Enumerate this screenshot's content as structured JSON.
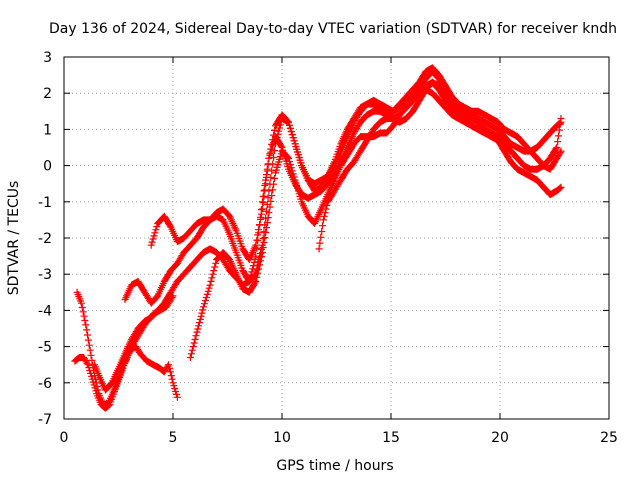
{
  "chart_data": {
    "type": "scatter",
    "title": "Day 136 of 2024, Sidereal Day-to-day VTEC variation (SDTVAR) for receiver kndh",
    "xlabel": "GPS time / hours",
    "ylabel": "SDTVAR / TECUs",
    "xlim": [
      0,
      25
    ],
    "ylim": [
      -7,
      3
    ],
    "xticks": [
      "0",
      "5",
      "10",
      "15",
      "20",
      "25"
    ],
    "yticks": [
      "-7",
      "-6",
      "-5",
      "-4",
      "-3",
      "-2",
      "-1",
      "0",
      "1",
      "2",
      "3"
    ],
    "grid": true,
    "marker": "plus",
    "color": "#ff0000",
    "series": [
      {
        "x": [
          0.5,
          0.7,
          0.9,
          1.1,
          1.3,
          1.5,
          1.7,
          1.9,
          2.1,
          2.4,
          2.7,
          3.0,
          3.3,
          3.5,
          3.8,
          4.1,
          4.4,
          4.6,
          4.8,
          5.0,
          5.2
        ],
        "y": [
          -5.4,
          -5.3,
          -5.3,
          -5.5,
          -5.9,
          -6.3,
          -6.6,
          -6.7,
          -6.6,
          -6.1,
          -5.6,
          -5.1,
          -5.0,
          -5.2,
          -5.4,
          -5.5,
          -5.6,
          -5.7,
          -5.5,
          -6.0,
          -6.4
        ]
      },
      {
        "x": [
          0.6,
          0.8,
          1.0,
          1.2,
          1.4,
          1.6,
          1.8,
          2.0,
          2.3,
          2.6,
          2.9,
          3.2,
          3.5,
          3.8,
          4.1,
          4.4,
          4.7,
          5.0
        ],
        "y": [
          -3.5,
          -3.8,
          -4.4,
          -5.1,
          -5.8,
          -6.3,
          -6.6,
          -6.6,
          -6.2,
          -5.7,
          -5.3,
          -4.9,
          -4.6,
          -4.3,
          -4.1,
          -4.0,
          -3.9,
          -3.6
        ]
      },
      {
        "x": [
          1.4,
          1.6,
          1.9,
          2.2,
          2.5,
          2.8,
          3.1,
          3.4,
          3.7,
          4.0,
          4.3,
          4.6,
          4.9,
          5.2,
          5.5,
          5.8,
          6.1,
          6.4,
          6.7,
          7.0,
          7.3,
          7.6,
          7.9,
          8.2,
          8.5,
          8.8,
          9.1,
          9.4,
          9.7,
          10.0,
          10.3,
          10.6,
          10.9,
          11.2,
          11.5,
          11.8,
          12.1,
          12.4,
          12.7,
          13.0,
          13.3,
          13.6,
          13.9,
          14.2,
          14.5,
          14.8,
          15.1,
          15.4,
          15.7,
          16.0,
          16.3,
          16.6,
          16.9,
          17.2,
          17.5,
          17.8,
          18.1,
          18.4,
          18.7,
          19.0,
          19.3,
          19.6,
          19.9,
          20.2,
          20.5,
          20.8,
          21.1,
          21.4,
          21.7,
          22.0,
          22.3,
          22.6,
          22.8
        ],
        "y": [
          -5.5,
          -5.8,
          -6.2,
          -6.0,
          -5.6,
          -5.2,
          -4.8,
          -4.5,
          -4.3,
          -4.2,
          -4.0,
          -3.8,
          -3.5,
          -3.2,
          -3.0,
          -2.8,
          -2.6,
          -2.4,
          -2.3,
          -2.4,
          -2.6,
          -2.9,
          -3.1,
          -3.3,
          -3.2,
          -2.5,
          -1.0,
          0.2,
          0.8,
          0.5,
          -0.1,
          -0.5,
          -0.8,
          -0.9,
          -0.8,
          -0.7,
          -0.5,
          -0.2,
          0.1,
          0.5,
          0.9,
          1.2,
          1.4,
          1.5,
          1.5,
          1.4,
          1.3,
          1.2,
          1.3,
          1.5,
          1.8,
          2.1,
          2.3,
          2.1,
          1.8,
          1.6,
          1.4,
          1.3,
          1.1,
          1.0,
          0.9,
          0.8,
          0.7,
          0.4,
          0.1,
          -0.1,
          -0.2,
          -0.3,
          -0.4,
          -0.6,
          -0.8,
          -0.7,
          -0.6
        ]
      },
      {
        "x": [
          2.8,
          3.1,
          3.4,
          3.7,
          4.0,
          4.3,
          4.6,
          4.9,
          5.2,
          5.5,
          5.8,
          6.1,
          6.4,
          6.7,
          7.0,
          7.3,
          7.6,
          7.9,
          8.2,
          8.5,
          8.8,
          9.1,
          9.4,
          9.7,
          10.0,
          10.3,
          10.6,
          10.9,
          11.2,
          11.5,
          11.8,
          12.1,
          12.4,
          12.7,
          13.0,
          13.3,
          13.6,
          13.9,
          14.2,
          14.5,
          14.8,
          15.1,
          15.4,
          15.7,
          16.0,
          16.3,
          16.6,
          16.9,
          17.2,
          17.5,
          17.8,
          18.1,
          18.4,
          18.7,
          19.0,
          19.3,
          19.6,
          19.9,
          20.2,
          20.5,
          20.8,
          21.1,
          21.4,
          21.7,
          22.0,
          22.3,
          22.6,
          22.8
        ],
        "y": [
          -3.7,
          -3.3,
          -3.2,
          -3.5,
          -3.8,
          -3.6,
          -3.2,
          -2.9,
          -2.7,
          -2.4,
          -2.2,
          -2.0,
          -1.7,
          -1.5,
          -1.4,
          -1.5,
          -1.9,
          -2.4,
          -2.9,
          -3.2,
          -3.0,
          -2.2,
          -0.7,
          0.6,
          1.3,
          1.2,
          0.6,
          0.0,
          -0.4,
          -0.5,
          -0.4,
          -0.3,
          0.0,
          0.4,
          0.8,
          1.2,
          1.5,
          1.7,
          1.8,
          1.7,
          1.6,
          1.5,
          1.6,
          1.8,
          2.0,
          2.2,
          2.4,
          2.6,
          2.4,
          2.1,
          1.8,
          1.6,
          1.5,
          1.4,
          1.3,
          1.2,
          1.1,
          1.0,
          0.8,
          0.6,
          0.5,
          0.4,
          0.4,
          0.5,
          0.7,
          0.9,
          1.1,
          1.2
        ]
      },
      {
        "x": [
          4.0,
          4.3,
          4.6,
          4.9,
          5.2,
          5.5,
          5.8,
          6.1,
          6.4,
          6.7,
          7.0,
          7.3,
          7.6,
          7.9,
          8.2,
          8.5,
          8.8,
          9.1,
          9.4,
          9.7,
          10.0,
          10.3,
          10.6,
          10.9,
          11.2,
          11.5,
          11.8,
          12.1,
          12.4,
          12.7,
          13.0,
          13.3,
          13.6,
          13.9,
          14.2,
          14.5,
          14.8,
          15.1,
          15.4,
          15.7,
          16.0,
          16.3,
          16.6,
          16.9,
          17.2,
          17.5,
          17.8,
          18.1,
          18.4,
          18.7,
          19.0,
          19.3,
          19.6,
          19.9,
          20.2,
          20.5,
          20.8,
          21.1,
          21.4,
          21.7,
          22.0,
          22.3,
          22.6,
          22.8
        ],
        "y": [
          -2.2,
          -1.6,
          -1.4,
          -1.7,
          -2.1,
          -2.0,
          -1.8,
          -1.6,
          -1.5,
          -1.5,
          -1.3,
          -1.2,
          -1.4,
          -1.8,
          -2.3,
          -2.6,
          -2.2,
          -1.2,
          0.2,
          1.1,
          1.4,
          1.2,
          0.6,
          0.0,
          -0.4,
          -0.7,
          -0.6,
          -0.3,
          0.1,
          0.6,
          1.0,
          1.3,
          1.6,
          1.7,
          1.7,
          1.6,
          1.5,
          1.5,
          1.7,
          1.9,
          2.1,
          2.3,
          2.6,
          2.7,
          2.5,
          2.2,
          1.9,
          1.7,
          1.6,
          1.5,
          1.5,
          1.4,
          1.3,
          1.2,
          1.0,
          0.9,
          0.8,
          0.6,
          0.4,
          0.2,
          0.0,
          -0.1,
          0.2,
          0.4
        ]
      },
      {
        "x": [
          5.8,
          6.1,
          6.4,
          6.7,
          7.0,
          7.3,
          7.6,
          7.9,
          8.2,
          8.5,
          8.8,
          9.1,
          9.4,
          9.7,
          10.0,
          10.3,
          10.6,
          10.9,
          11.2,
          11.5,
          11.8,
          12.1,
          12.4,
          12.7,
          13.0,
          13.3,
          13.6,
          13.9,
          14.2,
          14.5,
          14.8,
          15.1,
          15.4,
          15.7,
          16.0,
          16.3,
          16.6,
          16.9,
          17.2,
          17.5,
          17.8,
          18.1,
          18.4,
          18.7,
          19.0,
          19.3,
          19.6,
          19.9,
          20.2,
          20.5,
          20.8,
          21.1,
          21.4,
          21.7,
          22.0,
          22.3,
          22.6,
          22.8
        ],
        "y": [
          -5.3,
          -4.6,
          -3.9,
          -3.3,
          -2.6,
          -2.4,
          -2.6,
          -3.0,
          -3.4,
          -3.5,
          -3.2,
          -2.4,
          -1.3,
          -0.2,
          0.4,
          0.2,
          -0.4,
          -1.0,
          -1.4,
          -1.6,
          -1.2,
          -0.8,
          -0.4,
          0.0,
          0.3,
          0.6,
          0.8,
          0.8,
          0.8,
          0.9,
          0.9,
          1.1,
          1.4,
          1.6,
          1.8,
          2.0,
          2.1,
          2.0,
          1.8,
          1.6,
          1.4,
          1.3,
          1.2,
          1.1,
          1.0,
          0.9,
          0.9,
          0.8,
          0.6,
          0.4,
          0.2,
          0.0,
          -0.1,
          -0.1,
          0.0,
          0.2,
          0.5,
          1.3
        ]
      },
      {
        "x": [
          11.7,
          11.9,
          12.1,
          12.4,
          12.7,
          13.0,
          13.3,
          13.6,
          13.9,
          14.2,
          14.5,
          14.8,
          15.1,
          15.4,
          15.7,
          16.0,
          16.3,
          16.6,
          16.9,
          17.2,
          17.5,
          17.8,
          18.1,
          18.4,
          18.7,
          19.0,
          19.3,
          19.6,
          19.9,
          20.2,
          20.5,
          20.8
        ],
        "y": [
          -2.3,
          -1.5,
          -1.0,
          -0.7,
          -0.4,
          -0.1,
          0.1,
          0.4,
          0.7,
          1.0,
          1.2,
          1.3,
          1.3,
          1.4,
          1.6,
          1.8,
          2.0,
          2.2,
          2.3,
          2.2,
          2.0,
          1.8,
          1.6,
          1.4,
          1.3,
          1.2,
          1.0,
          0.9,
          0.8,
          0.6,
          0.4,
          0.2
        ]
      }
    ]
  }
}
